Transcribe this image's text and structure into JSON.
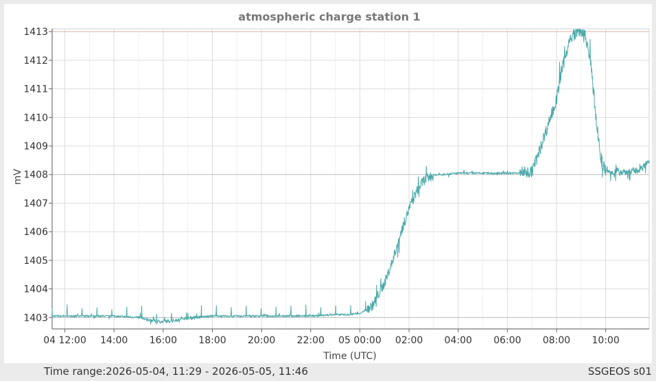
{
  "chart_data": {
    "type": "line",
    "title": "atmospheric charge station 1",
    "xlabel": "Time (UTC)",
    "ylabel": "mV",
    "x_tick_labels": [
      "04 12:00",
      "14:00",
      "16:00",
      "18:00",
      "20:00",
      "22:00",
      "05 00:00",
      "02:00",
      "04:00",
      "06:00",
      "08:00",
      "10:00"
    ],
    "y_tick_labels": [
      "1403",
      "1404",
      "1405",
      "1406",
      "1407",
      "1408",
      "1409",
      "1410",
      "1411",
      "1412",
      "1413"
    ],
    "ylim": [
      1402.6,
      1413.1
    ],
    "xlim_hours": [
      11.483,
      35.767
    ],
    "grid": true,
    "reference_lines": [
      1403,
      1408,
      1413
    ],
    "series": [
      {
        "color": "#4aa8a8",
        "x_hours": [
          11.483,
          12,
          13,
          14,
          15,
          15.5,
          16,
          16.5,
          17,
          18,
          19,
          20,
          21,
          22,
          23,
          23.5,
          24,
          24.5,
          25,
          25.3,
          25.6,
          26,
          26.3,
          26.6,
          27,
          27.5,
          28,
          29,
          30,
          30.5,
          31,
          31.3,
          31.6,
          32,
          32.2,
          32.5,
          32.8,
          33,
          33.2,
          33.4,
          33.6,
          33.8,
          34,
          34.5,
          35,
          35.5,
          35.767
        ],
        "y_mV": [
          1403.05,
          1403.05,
          1403.05,
          1403.05,
          1403.0,
          1402.9,
          1402.85,
          1402.9,
          1402.98,
          1403.05,
          1403.05,
          1403.05,
          1403.05,
          1403.05,
          1403.1,
          1403.1,
          1403.15,
          1403.4,
          1404.2,
          1404.9,
          1405.8,
          1406.8,
          1407.4,
          1407.8,
          1407.98,
          1408.02,
          1408.05,
          1408.05,
          1408.05,
          1408.05,
          1408.1,
          1408.8,
          1409.6,
          1410.6,
          1411.6,
          1412.6,
          1413.0,
          1413.05,
          1412.8,
          1411.8,
          1410.0,
          1408.6,
          1408.1,
          1408.1,
          1408.1,
          1408.2,
          1408.5
        ]
      }
    ]
  },
  "colors": {
    "background": "#ebebeb",
    "plot_background": "#ffffff",
    "grid": "#dcdcdc",
    "reference_line": "#b9b9b9",
    "top_line": "#d9b3a0",
    "line": "#4aa8a8"
  },
  "footer": {
    "time_range": "Time range:2026-05-04, 11:29 - 2026-05-05, 11:46",
    "station": "SSGEOS s01"
  }
}
